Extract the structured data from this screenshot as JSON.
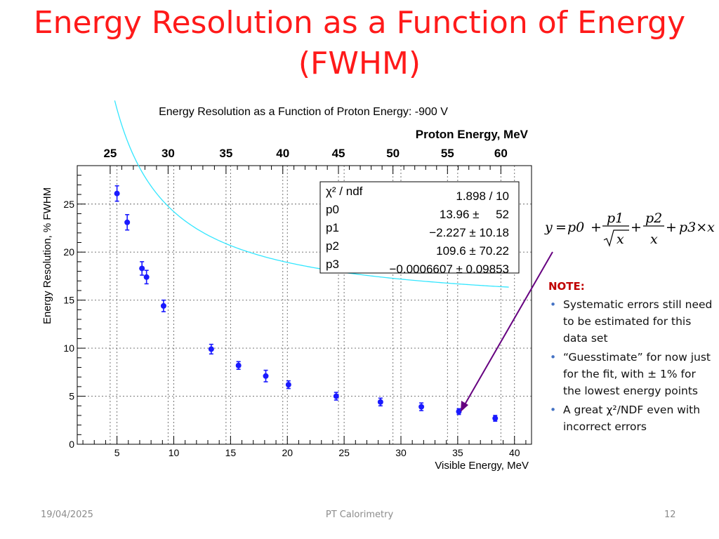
{
  "slide": {
    "title_line1": "Energy Resolution as a Function of Energy",
    "title_line2": "(FWHM)",
    "footer_date": "19/04/2025",
    "footer_center": "PT Calorimetry",
    "page_number": "12"
  },
  "note": {
    "heading": "NOTE:",
    "bullets": [
      "Systematic errors still need to be estimated for this data set",
      "“Guesstimate” for now just for the fit, with ± 1% for the lowest energy points",
      "A great χ²/NDF even with incorrect errors"
    ]
  },
  "formula": {
    "lhs": "y",
    "eq": "=",
    "p0": "p0",
    "p1": "p1",
    "sqrt_x": "x",
    "p2": "p2",
    "den_x": "x",
    "p3x": "p3×x",
    "plus": "+"
  },
  "colors": {
    "title": "#ff1a1a",
    "points": "#1a1aff",
    "fit": "#33e6ff",
    "arrow": "#660080",
    "note_heading": "#c00000",
    "bullet": "#4472c4"
  },
  "chart_data": {
    "type": "scatter",
    "title": "Energy Resolution as a Function of Proton Energy: -900 V",
    "xlabel": "Visible Energy, MeV",
    "ylabel": "Energy Resolution, % FWHM",
    "x2label": "Proton Energy, MeV",
    "xlim": [
      1.5,
      41.5
    ],
    "ylim": [
      0,
      29
    ],
    "xticks": [
      5,
      10,
      15,
      20,
      25,
      30,
      35,
      40
    ],
    "yticks": [
      0,
      5,
      10,
      15,
      20,
      25
    ],
    "x2ticks": [
      {
        "label": "25",
        "x": 4.4
      },
      {
        "label": "30",
        "x": 9.5
      },
      {
        "label": "35",
        "x": 14.6
      },
      {
        "label": "40",
        "x": 19.6
      },
      {
        "label": "45",
        "x": 24.5
      },
      {
        "label": "50",
        "x": 29.3
      },
      {
        "label": "55",
        "x": 34.1
      },
      {
        "label": "60",
        "x": 38.8
      }
    ],
    "grid": true,
    "series": [
      {
        "points": [
          {
            "x": 5.0,
            "y": 26.1,
            "err": 0.8
          },
          {
            "x": 5.9,
            "y": 23.1,
            "err": 0.8
          },
          {
            "x": 7.2,
            "y": 18.3,
            "err": 0.7
          },
          {
            "x": 7.6,
            "y": 17.4,
            "err": 0.7
          },
          {
            "x": 9.1,
            "y": 14.4,
            "err": 0.6
          },
          {
            "x": 13.3,
            "y": 9.9,
            "err": 0.5
          },
          {
            "x": 15.7,
            "y": 8.2,
            "err": 0.4
          },
          {
            "x": 18.1,
            "y": 7.1,
            "err": 0.6
          },
          {
            "x": 20.1,
            "y": 6.2,
            "err": 0.4
          },
          {
            "x": 24.3,
            "y": 5.0,
            "err": 0.4
          },
          {
            "x": 28.2,
            "y": 4.4,
            "err": 0.4
          },
          {
            "x": 31.8,
            "y": 3.9,
            "err": 0.4
          },
          {
            "x": 35.1,
            "y": 3.4,
            "err": 0.3
          },
          {
            "x": 38.3,
            "y": 2.7,
            "err": 0.3
          }
        ]
      }
    ],
    "fit": {
      "x_range": [
        4.8,
        39.5
      ],
      "p0": 13.96,
      "p1": -2.227,
      "p2": 109.6,
      "p3": -0.0006607
    },
    "stats": [
      {
        "name": "χ² / ndf",
        "value": "1.898 / 10"
      },
      {
        "name": "p0",
        "value": "13.96 ±     52"
      },
      {
        "name": "p1",
        "value": "−2.227 ± 10.18"
      },
      {
        "name": "p2",
        "value": "109.6 ± 70.22"
      },
      {
        "name": "p3",
        "value": "−0.0006607 ± 0.09853"
      }
    ]
  }
}
